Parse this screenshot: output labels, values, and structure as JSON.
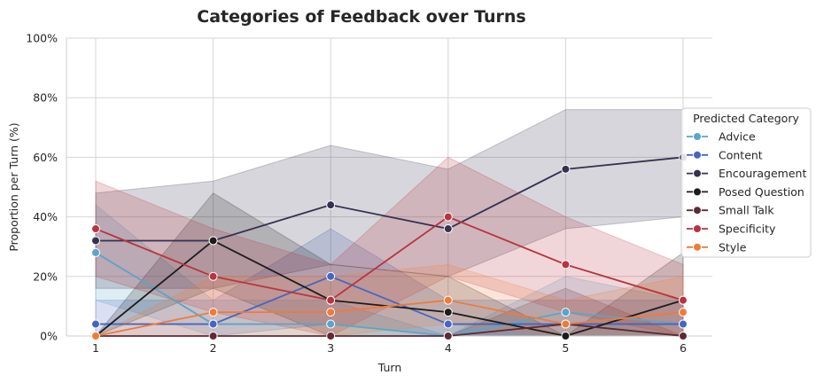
{
  "chart_data": {
    "type": "line",
    "title": "Categories of Feedback over Turns",
    "xlabel": "Turn",
    "ylabel": "Proportion per Turn (%)",
    "x": [
      1,
      2,
      3,
      4,
      5,
      6
    ],
    "x_tick_labels": [
      "1",
      "2",
      "3",
      "4",
      "5",
      "6"
    ],
    "ylim": [
      0,
      100
    ],
    "y_tick_labels": [
      "0%",
      "20%",
      "40%",
      "60%",
      "80%",
      "100%"
    ],
    "y_ticks": [
      0,
      20,
      40,
      60,
      80,
      100
    ],
    "grid": true,
    "legend": {
      "title": "Predicted Category",
      "placement": "right"
    },
    "series": [
      {
        "name": "Advice",
        "color": "#5aa5c8",
        "values": [
          28,
          4,
          4,
          0,
          8,
          4
        ],
        "ci_low": [
          12,
          0,
          0,
          0,
          0,
          0
        ],
        "ci_high": [
          44,
          12,
          12,
          0,
          20,
          12
        ]
      },
      {
        "name": "Content",
        "color": "#4466c0",
        "values": [
          4,
          4,
          20,
          4,
          4,
          4
        ],
        "ci_low": [
          0,
          0,
          4,
          0,
          0,
          0
        ],
        "ci_high": [
          12,
          12,
          36,
          12,
          12,
          12
        ]
      },
      {
        "name": "Encouragement",
        "color": "#353150",
        "values": [
          32,
          32,
          44,
          36,
          56,
          60
        ],
        "ci_low": [
          16,
          16,
          24,
          20,
          36,
          40
        ],
        "ci_high": [
          48,
          52,
          64,
          56,
          76,
          76
        ]
      },
      {
        "name": "Posed Question",
        "color": "#1c1c1c",
        "values": [
          0,
          32,
          12,
          8,
          0,
          12
        ],
        "ci_low": [
          0,
          16,
          0,
          0,
          0,
          0
        ],
        "ci_high": [
          0,
          48,
          24,
          20,
          0,
          28
        ]
      },
      {
        "name": "Small Talk",
        "color": "#5e2a33",
        "values": [
          0,
          0,
          0,
          0,
          4,
          0
        ],
        "ci_low": [
          0,
          0,
          0,
          0,
          0,
          0
        ],
        "ci_high": [
          0,
          0,
          0,
          0,
          16,
          0
        ]
      },
      {
        "name": "Specificity",
        "color": "#b83440",
        "values": [
          36,
          20,
          12,
          40,
          24,
          12
        ],
        "ci_low": [
          20,
          8,
          0,
          20,
          8,
          0
        ],
        "ci_high": [
          52,
          36,
          24,
          60,
          40,
          24
        ]
      },
      {
        "name": "Style",
        "color": "#ee7b3c",
        "values": [
          0,
          8,
          8,
          12,
          4,
          8
        ],
        "ci_low": [
          0,
          0,
          0,
          4,
          0,
          0
        ],
        "ci_high": [
          0,
          20,
          20,
          24,
          12,
          20
        ]
      }
    ]
  }
}
